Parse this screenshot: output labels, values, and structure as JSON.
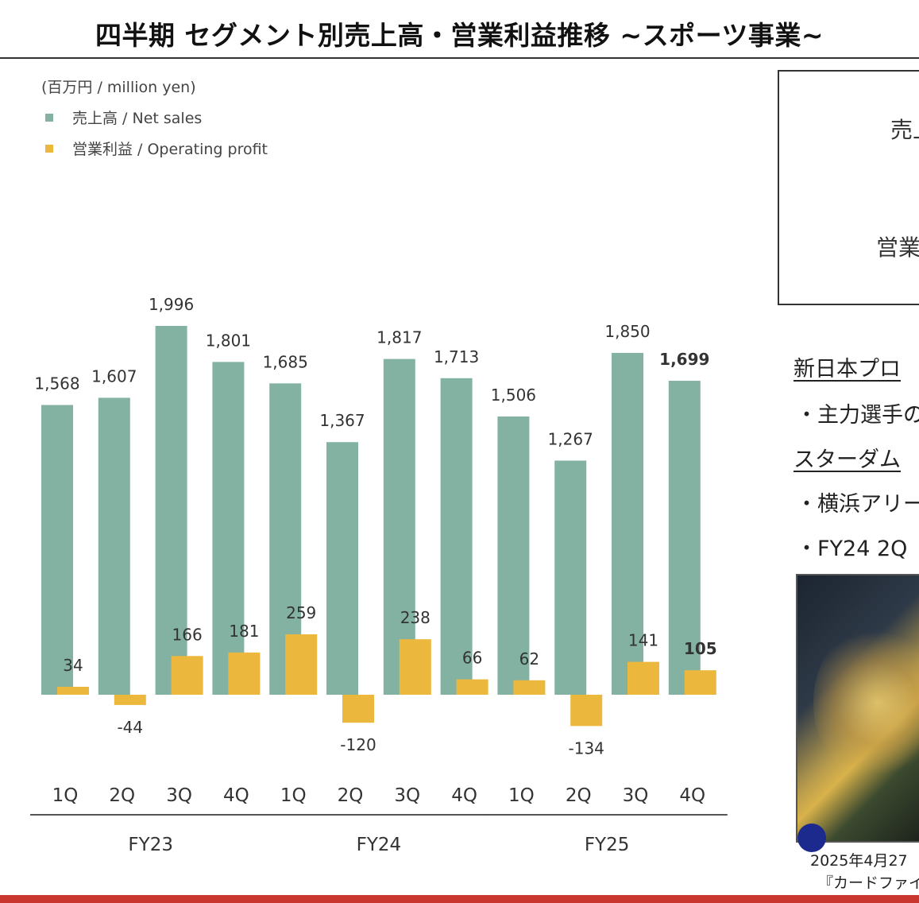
{
  "header": {
    "title": "四半期 セグメント別売上高・営業利益推移 ~スポーツ事業~"
  },
  "unit": "(百万円 / million yen)",
  "legend": [
    {
      "label": "売上高 / Net sales",
      "color": "#83b2a3"
    },
    {
      "label": "営業利益 / Operating profit",
      "color": "#ebb83d"
    }
  ],
  "chart_data": {
    "type": "bar",
    "categories": [
      "1Q",
      "2Q",
      "3Q",
      "4Q",
      "1Q",
      "2Q",
      "3Q",
      "4Q",
      "1Q",
      "2Q",
      "3Q",
      "4Q"
    ],
    "groups": [
      {
        "label": "FY23",
        "quarters": 4
      },
      {
        "label": "FY24",
        "quarters": 4
      },
      {
        "label": "FY25",
        "quarters": 4
      }
    ],
    "series": [
      {
        "name": "売上高 / Net sales",
        "color": "#83b2a3",
        "values": [
          1568,
          1607,
          1996,
          1801,
          1685,
          1367,
          1817,
          1713,
          1506,
          1267,
          1850,
          1699
        ],
        "labels": [
          "1,568",
          "1,607",
          "1,996",
          "1,801",
          "1,685",
          "1,367",
          "1,817",
          "1,713",
          "1,506",
          "1,267",
          "1,850",
          "1,699"
        ]
      },
      {
        "name": "営業利益 / Operating profit",
        "color": "#ebb83d",
        "values": [
          34,
          -44,
          166,
          181,
          259,
          -120,
          238,
          66,
          62,
          -134,
          141,
          105
        ],
        "labels": [
          "34",
          "-44",
          "166",
          "181",
          "259",
          "-120",
          "238",
          "66",
          "62",
          "-134",
          "141",
          "105"
        ]
      }
    ],
    "highlight_last": true,
    "grid": false,
    "legend_position": "top-left"
  },
  "side_panel": {
    "box_line1": "売上",
    "box_line2": "営業",
    "texts": [
      "新日本プロ",
      "・主力選手の",
      "スターダム",
      "・横浜アリー",
      "・FY24 2Q"
    ]
  },
  "photo": {
    "caption1": "2025年4月27",
    "caption2": "『カードファイ"
  }
}
